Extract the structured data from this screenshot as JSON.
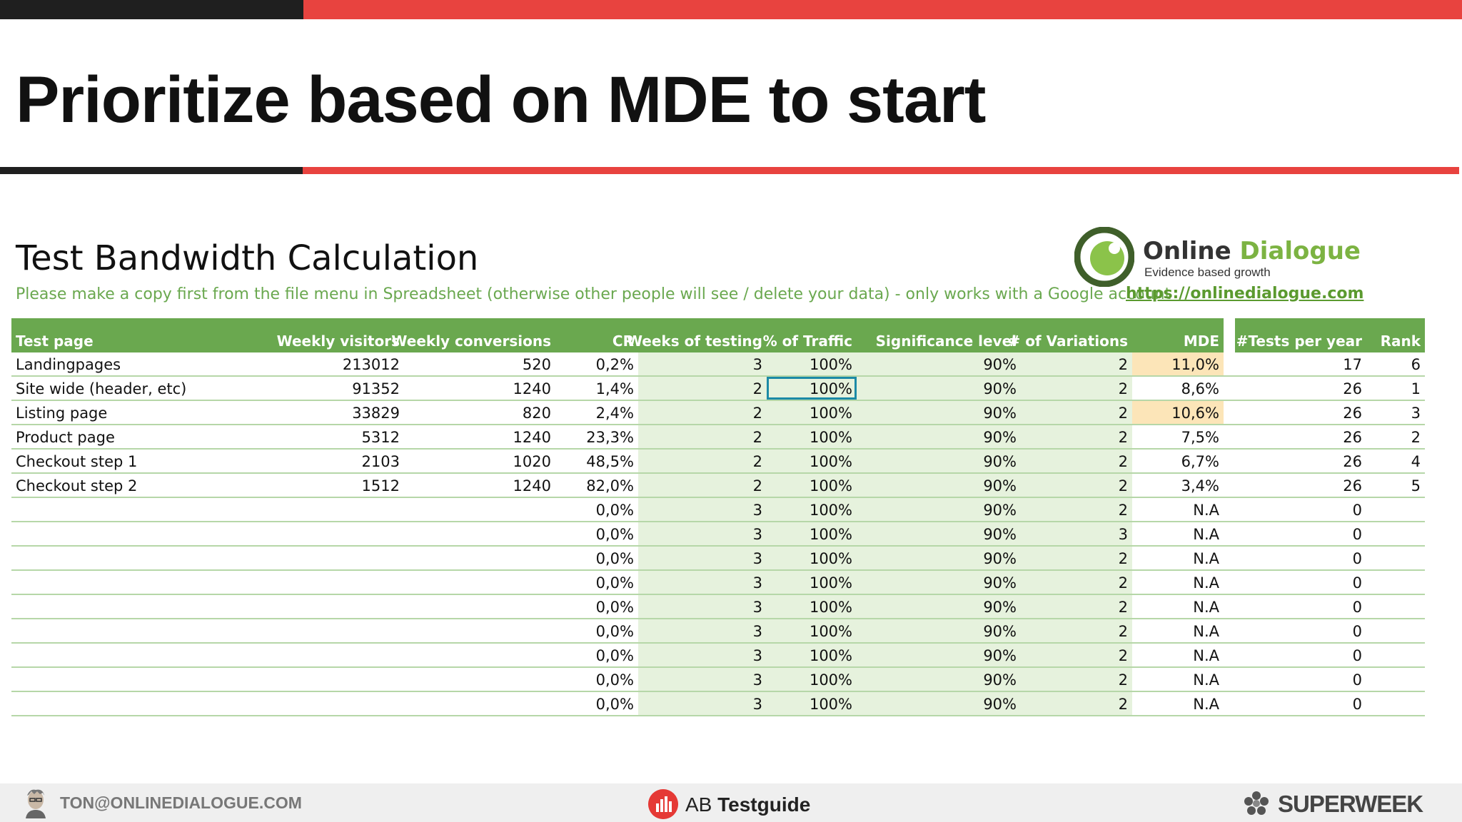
{
  "slide": {
    "title": "Prioritize based on MDE to start"
  },
  "sheet": {
    "title": "Test Bandwidth Calculation",
    "note": "Please make a copy first from the file menu in Spreadsheet (otherwise other people will see / delete your data) - only works with a Google account",
    "columns": [
      "Test page",
      "Weekly visitors",
      "Weekly conversions",
      "CR",
      "Weeks of testing",
      "% of Traffic",
      "Significance level",
      "# of Variations",
      "MDE",
      "#Tests per year",
      "Rank"
    ],
    "rows": [
      [
        "Landingpages",
        "213012",
        "520",
        "0,2%",
        "3",
        "100%",
        "90%",
        "2",
        "11,0%",
        "17",
        "6"
      ],
      [
        "Site wide (header, etc)",
        "91352",
        "1240",
        "1,4%",
        "2",
        "100%",
        "90%",
        "2",
        "8,6%",
        "26",
        "1"
      ],
      [
        "Listing page",
        "33829",
        "820",
        "2,4%",
        "2",
        "100%",
        "90%",
        "2",
        "10,6%",
        "26",
        "3"
      ],
      [
        "Product page",
        "5312",
        "1240",
        "23,3%",
        "2",
        "100%",
        "90%",
        "2",
        "7,5%",
        "26",
        "2"
      ],
      [
        "Checkout step 1",
        "2103",
        "1020",
        "48,5%",
        "2",
        "100%",
        "90%",
        "2",
        "6,7%",
        "26",
        "4"
      ],
      [
        "Checkout step 2",
        "1512",
        "1240",
        "82,0%",
        "2",
        "100%",
        "90%",
        "2",
        "3,4%",
        "26",
        "5"
      ],
      [
        "",
        "",
        "",
        "0,0%",
        "3",
        "100%",
        "90%",
        "2",
        "N.A",
        "0",
        ""
      ],
      [
        "",
        "",
        "",
        "0,0%",
        "3",
        "100%",
        "90%",
        "3",
        "N.A",
        "0",
        ""
      ],
      [
        "",
        "",
        "",
        "0,0%",
        "3",
        "100%",
        "90%",
        "2",
        "N.A",
        "0",
        ""
      ],
      [
        "",
        "",
        "",
        "0,0%",
        "3",
        "100%",
        "90%",
        "2",
        "N.A",
        "0",
        ""
      ],
      [
        "",
        "",
        "",
        "0,0%",
        "3",
        "100%",
        "90%",
        "2",
        "N.A",
        "0",
        ""
      ],
      [
        "",
        "",
        "",
        "0,0%",
        "3",
        "100%",
        "90%",
        "2",
        "N.A",
        "0",
        ""
      ],
      [
        "",
        "",
        "",
        "0,0%",
        "3",
        "100%",
        "90%",
        "2",
        "N.A",
        "0",
        ""
      ],
      [
        "",
        "",
        "",
        "0,0%",
        "3",
        "100%",
        "90%",
        "2",
        "N.A",
        "0",
        ""
      ],
      [
        "",
        "",
        "",
        "0,0%",
        "3",
        "100%",
        "90%",
        "2",
        "N.A",
        "0",
        ""
      ]
    ],
    "highlighted_mde_rows": [
      0,
      2
    ],
    "selected_cell": {
      "row": 1,
      "col": 5
    },
    "colors": {
      "header_green": "#6aa84f",
      "input_green": "#e6f2dd",
      "mde_highlight": "#fce5b8",
      "selection": "#1c8aa6"
    }
  },
  "logo": {
    "word_dark": "Online",
    "word_green": "Dialogue",
    "tagline": "Evidence based growth",
    "url": "https://onlinedialogue.com"
  },
  "footer": {
    "email": "TON@ONLINEDIALOGUE.COM",
    "ab_prefix": "AB",
    "ab_brand": "Testguide",
    "sponsor": "SUPERWEEK"
  }
}
